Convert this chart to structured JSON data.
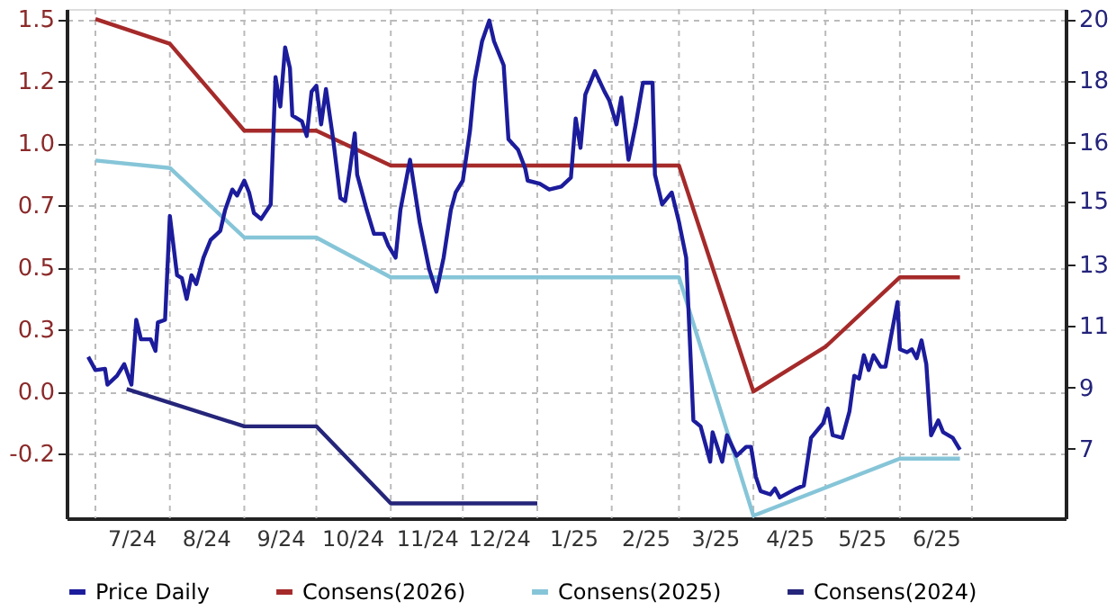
{
  "chart_data": {
    "type": "line",
    "xlim": [
      "2024-06-19",
      "2025-08-09"
    ],
    "xticks": [
      {
        "value": "2024-07-01",
        "label": null
      },
      {
        "value": "2024-07-16",
        "label": "7/24"
      },
      {
        "value": "2024-08-01",
        "label": null
      },
      {
        "value": "2024-08-16",
        "label": "8/24"
      },
      {
        "value": "2024-09-01",
        "label": null
      },
      {
        "value": "2024-09-16",
        "label": "9/24"
      },
      {
        "value": "2024-10-01",
        "label": null
      },
      {
        "value": "2024-10-16",
        "label": "10/24"
      },
      {
        "value": "2024-11-01",
        "label": null
      },
      {
        "value": "2024-11-16",
        "label": "11/24"
      },
      {
        "value": "2024-12-01",
        "label": null
      },
      {
        "value": "2024-12-16",
        "label": "12/24"
      },
      {
        "value": "2025-01-01",
        "label": null
      },
      {
        "value": "2025-01-16",
        "label": "1/25"
      },
      {
        "value": "2025-02-01",
        "label": null
      },
      {
        "value": "2025-02-15",
        "label": "2/25"
      },
      {
        "value": "2025-03-01",
        "label": null
      },
      {
        "value": "2025-03-16",
        "label": "3/25"
      },
      {
        "value": "2025-04-01",
        "label": null
      },
      {
        "value": "2025-04-16",
        "label": "4/25"
      },
      {
        "value": "2025-05-01",
        "label": null
      },
      {
        "value": "2025-05-16",
        "label": "5/25"
      },
      {
        "value": "2025-06-01",
        "label": null
      },
      {
        "value": "2025-06-16",
        "label": "6/25"
      },
      {
        "value": "2025-07-01",
        "label": null
      }
    ],
    "ylim": [
      -0.51,
      1.54
    ],
    "yticks": [
      {
        "value": -0.25,
        "label": "-0.2"
      },
      {
        "value": 0,
        "label": "0.0"
      },
      {
        "value": 0.25,
        "label": "0.3"
      },
      {
        "value": 0.5,
        "label": "0.5"
      },
      {
        "value": 0.75,
        "label": "0.7"
      },
      {
        "value": 1.0,
        "label": "1.0"
      },
      {
        "value": 1.25,
        "label": "1.2"
      },
      {
        "value": 1.5,
        "label": "1.5"
      }
    ],
    "y2lim": [
      4.9,
      20.3
    ],
    "y2ticks": [
      {
        "value": 7,
        "label": "7"
      },
      {
        "value": 8.857,
        "label": "9"
      },
      {
        "value": 10.714,
        "label": "11"
      },
      {
        "value": 12.571,
        "label": "13"
      },
      {
        "value": 14.5,
        "label": "15"
      },
      {
        "value": 16.286,
        "label": "16"
      },
      {
        "value": 18.143,
        "label": "18"
      },
      {
        "value": 20,
        "label": "20"
      }
    ],
    "grid": true,
    "legend": "bottom",
    "marker": "none",
    "line_style": "solid",
    "series": [
      {
        "name": "Price Daily",
        "color": "#1c1c9c",
        "axis": "y2",
        "x": [
          "2024-06-28",
          "2024-07-01",
          "2024-07-05",
          "2024-07-06",
          "2024-07-10",
          "2024-07-13",
          "2024-07-16",
          "2024-07-18",
          "2024-07-20",
          "2024-07-24",
          "2024-07-26",
          "2024-07-27",
          "2024-07-30",
          "2024-08-01",
          "2024-08-04",
          "2024-08-06",
          "2024-08-08",
          "2024-08-10",
          "2024-08-12",
          "2024-08-15",
          "2024-08-18",
          "2024-08-22",
          "2024-08-24",
          "2024-08-27",
          "2024-08-29",
          "2024-09-01",
          "2024-09-03",
          "2024-09-05",
          "2024-09-08",
          "2024-09-12",
          "2024-09-14",
          "2024-09-16",
          "2024-09-18",
          "2024-09-20",
          "2024-09-21",
          "2024-09-25",
          "2024-09-27",
          "2024-09-29",
          "2024-10-01",
          "2024-10-03",
          "2024-10-05",
          "2024-10-08",
          "2024-10-11",
          "2024-10-13",
          "2024-10-15",
          "2024-10-17",
          "2024-10-18",
          "2024-10-22",
          "2024-10-25",
          "2024-10-29",
          "2024-10-31",
          "2024-11-03",
          "2024-11-05",
          "2024-11-09",
          "2024-11-13",
          "2024-11-17",
          "2024-11-20",
          "2024-11-23",
          "2024-11-26",
          "2024-11-28",
          "2024-12-01",
          "2024-12-04",
          "2024-12-06",
          "2024-12-09",
          "2024-12-12",
          "2024-12-14",
          "2024-12-18",
          "2024-12-20",
          "2024-12-24",
          "2024-12-27",
          "2024-12-28",
          "2025-01-02",
          "2025-01-06",
          "2025-01-11",
          "2025-01-15",
          "2025-01-17",
          "2025-01-19",
          "2025-01-21",
          "2025-01-25",
          "2025-01-29",
          "2025-01-31",
          "2025-02-03",
          "2025-02-05",
          "2025-02-08",
          "2025-02-11",
          "2025-02-14",
          "2025-02-18",
          "2025-02-19",
          "2025-02-22",
          "2025-02-26",
          "2025-03-01",
          "2025-03-04",
          "2025-03-07",
          "2025-03-10",
          "2025-03-14",
          "2025-03-15",
          "2025-03-19",
          "2025-03-21",
          "2025-03-25",
          "2025-03-29",
          "2025-03-31",
          "2025-04-02",
          "2025-04-04",
          "2025-04-08",
          "2025-04-10",
          "2025-04-12",
          "2025-04-19",
          "2025-04-22",
          "2025-04-25",
          "2025-04-30",
          "2025-05-02",
          "2025-05-04",
          "2025-05-08",
          "2025-05-11",
          "2025-05-13",
          "2025-05-15",
          "2025-05-17",
          "2025-05-19",
          "2025-05-21",
          "2025-05-24",
          "2025-05-26",
          "2025-05-28",
          "2025-05-31",
          "2025-06-01",
          "2025-06-04",
          "2025-06-06",
          "2025-06-08",
          "2025-06-10",
          "2025-06-12",
          "2025-06-14",
          "2025-06-17",
          "2025-06-19",
          "2025-06-23",
          "2025-06-26"
        ],
        "values": [
          9.78,
          9.38,
          9.42,
          8.94,
          9.21,
          9.56,
          8.94,
          10.9,
          10.31,
          10.31,
          9.96,
          10.82,
          10.9,
          14.04,
          12.25,
          12.16,
          11.53,
          12.25,
          11.98,
          12.78,
          13.32,
          13.59,
          14.22,
          14.84,
          14.66,
          15.11,
          14.75,
          14.13,
          13.95,
          14.39,
          18.24,
          17.35,
          19.14,
          18.51,
          17.08,
          16.9,
          16.46,
          17.8,
          17.98,
          16.81,
          17.88,
          16.36,
          14.58,
          14.49,
          15.47,
          16.54,
          15.29,
          14.22,
          13.5,
          13.5,
          13.14,
          12.78,
          14.22,
          15.74,
          13.86,
          12.43,
          11.75,
          12.78,
          14.22,
          14.75,
          15.11,
          16.63,
          18.15,
          19.32,
          19.95,
          19.32,
          18.6,
          16.36,
          16.04,
          15.47,
          15.11,
          15.02,
          14.84,
          14.93,
          15.2,
          16.99,
          16.1,
          17.71,
          18.42,
          17.8,
          17.53,
          16.81,
          17.62,
          15.74,
          16.81,
          18.07,
          18.07,
          15.29,
          14.39,
          14.75,
          13.86,
          12.78,
          7.86,
          7.68,
          6.61,
          7.5,
          6.61,
          7.41,
          6.79,
          7.06,
          7.06,
          6.16,
          5.72,
          5.62,
          5.8,
          5.53,
          5.8,
          5.89,
          7.33,
          7.77,
          8.22,
          7.41,
          7.33,
          8.13,
          9.21,
          9.12,
          9.83,
          9.38,
          9.83,
          9.48,
          9.48,
          10.28,
          11.44,
          10.01,
          9.92,
          10.01,
          9.74,
          10.28,
          9.56,
          7.41,
          7.86,
          7.5,
          7.33,
          6.97
        ]
      },
      {
        "name": "Consens(2026)",
        "color": "#a52a2a",
        "x": [
          "2024-07-01",
          "2024-08-01",
          "2024-09-01",
          "2024-10-01",
          "2024-11-01",
          "2025-03-01",
          "2025-04-01",
          "2025-05-01",
          "2025-06-01",
          "2025-06-26"
        ],
        "values": [
          1.5,
          1.4,
          1.05,
          1.05,
          0.91,
          0.91,
          0.0,
          0.18,
          0.46,
          0.46
        ]
      },
      {
        "name": "Consens(2025)",
        "color": "#86c5d8",
        "x": [
          "2024-07-01",
          "2024-08-01",
          "2024-09-01",
          "2024-10-01",
          "2024-11-01",
          "2025-03-01",
          "2025-04-01",
          "2025-06-01",
          "2025-06-26"
        ],
        "values": [
          0.93,
          0.9,
          0.62,
          0.62,
          0.46,
          0.46,
          -0.5,
          -0.27,
          -0.27
        ]
      },
      {
        "name": "Consens(2024)",
        "color": "#25257a",
        "x": [
          "2024-07-14",
          "2024-09-01",
          "2024-10-01",
          "2024-11-01",
          "2025-01-01"
        ],
        "values": [
          0.01,
          -0.14,
          -0.14,
          -0.45,
          -0.45
        ]
      }
    ]
  }
}
